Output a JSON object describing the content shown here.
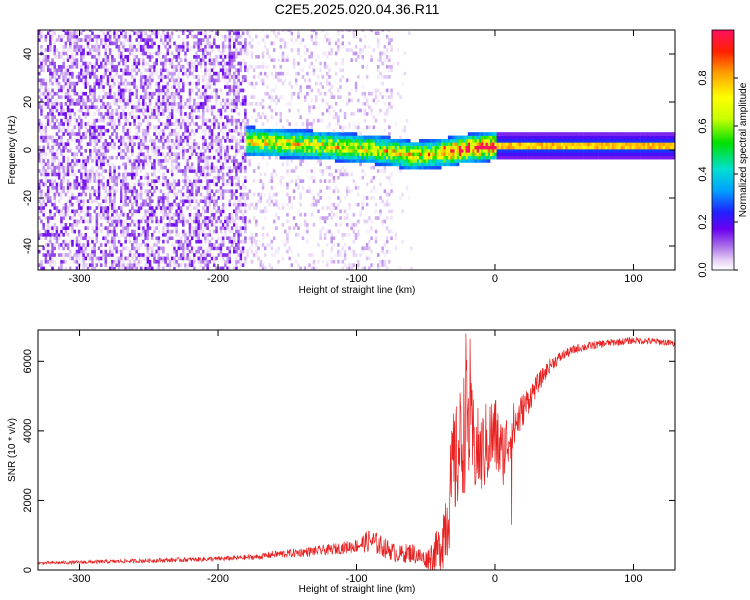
{
  "figure": {
    "title": "C2E5.2025.020.04.36.R11"
  },
  "chart_data": [
    {
      "type": "heatmap",
      "xlabel": "Height of straight line (km)",
      "ylabel": "Frequency (Hz)",
      "xlim": [
        -330,
        130
      ],
      "ylim": [
        -50,
        50
      ],
      "x_ticks": [
        -300,
        -200,
        -100,
        0,
        100
      ],
      "y_ticks": [
        -40,
        -20,
        0,
        20,
        40
      ],
      "colorbar": {
        "label": "Normalized spectral amplitude",
        "range": [
          0,
          1
        ],
        "ticks": [
          0.0,
          0.2,
          0.4,
          0.6,
          0.8
        ],
        "colormap": [
          "#ffffff",
          "#e6d0f6",
          "#a86ee8",
          "#6a00f0",
          "#2020ff",
          "#00a0ff",
          "#00e0d0",
          "#00e000",
          "#c8ff00",
          "#ffff00",
          "#ffa000",
          "#ff2000",
          "#ff1060"
        ]
      },
      "features": {
        "noise_region_x": [
          -330,
          -70
        ],
        "noise_density_edges_x": [
          -180,
          -75
        ],
        "carrier_start_x": -180,
        "carrier_band_hz": [
          -4,
          5
        ],
        "carrier_peak_hz": 1,
        "carrier_drift_hz": [
          [
            -180,
            3
          ],
          [
            -150,
            2
          ],
          [
            -120,
            1
          ],
          [
            -100,
            0
          ],
          [
            -80,
            -1
          ],
          [
            -60,
            -3
          ],
          [
            -40,
            -2
          ],
          [
            -20,
            0
          ],
          [
            0,
            1
          ],
          [
            130,
            1
          ]
        ]
      }
    },
    {
      "type": "line",
      "xlabel": "Height of straight line (km)",
      "ylabel": "SNR (10 * v/v)",
      "xlim": [
        -330,
        130
      ],
      "ylim": [
        0,
        6900
      ],
      "x_ticks": [
        -300,
        -200,
        -100,
        0,
        100
      ],
      "y_ticks": [
        0,
        2000,
        4000,
        6000
      ],
      "series": [
        {
          "color": "#e82020",
          "x": [
            -330,
            -300,
            -250,
            -200,
            -170,
            -160,
            -150,
            -120,
            -100,
            -90,
            -80,
            -70,
            -60,
            -50,
            -40,
            -35,
            -30,
            -25,
            -20,
            -15,
            -10,
            -5,
            0,
            5,
            10,
            20,
            30,
            40,
            50,
            60,
            80,
            100,
            120,
            130
          ],
          "y": [
            200,
            220,
            270,
            320,
            380,
            450,
            470,
            580,
            700,
            850,
            650,
            450,
            500,
            300,
            600,
            1500,
            2800,
            3600,
            4300,
            3500,
            3300,
            3700,
            3900,
            3300,
            3800,
            4600,
            5300,
            5900,
            6200,
            6380,
            6520,
            6600,
            6560,
            6500
          ],
          "noise_amplitude": [
            40,
            50,
            60,
            70,
            80,
            110,
            120,
            150,
            200,
            350,
            300,
            250,
            300,
            250,
            700,
            1400,
            1600,
            1700,
            1900,
            1400,
            1200,
            1300,
            1200,
            1000,
            900,
            500,
            300,
            200,
            150,
            130,
            110,
            100,
            100,
            100
          ],
          "spikes": [
            [
              -21,
              6800
            ],
            [
              -18,
              6650
            ],
            [
              -30,
              4500
            ],
            [
              12,
              1300
            ]
          ]
        }
      ]
    }
  ]
}
